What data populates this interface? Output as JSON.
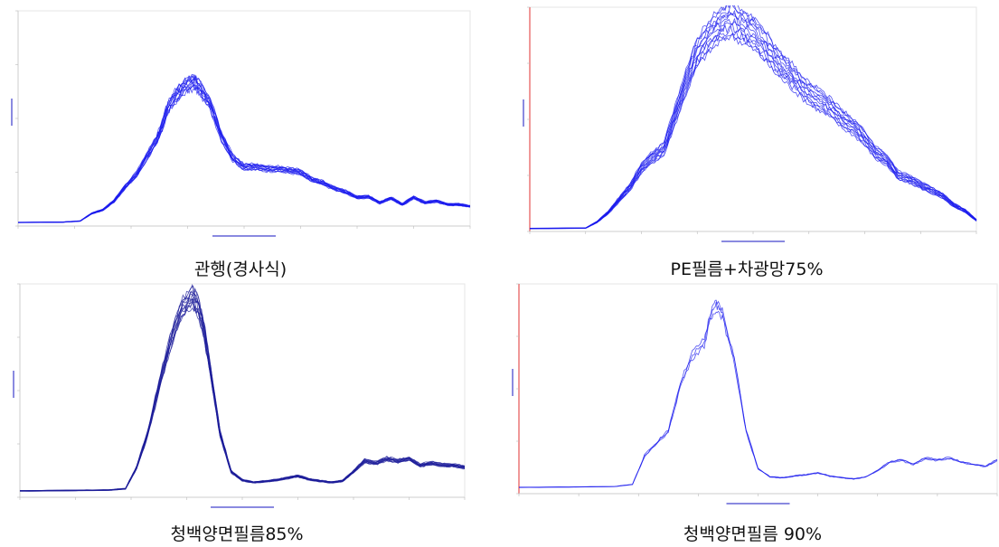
{
  "captions": [
    "관행(경사식)",
    "PE필름+차광망75%",
    "청백양면필름85%",
    "청백양면필름 90%"
  ],
  "colors": {
    "line": "#1a1aee",
    "line_dark": "#1a1a80",
    "axis_left": "#e03030",
    "grid": "#e6e6e6"
  },
  "chart_data": [
    {
      "type": "line",
      "title": "관행(경사식)",
      "xlim": [
        300,
        1100
      ],
      "ylim": [
        0,
        6000
      ],
      "series": [
        {
          "x": [
            300,
            380,
            410,
            430,
            450,
            470,
            490,
            510,
            530,
            545,
            555,
            565,
            580,
            595,
            610,
            620,
            640,
            660,
            680,
            700,
            720,
            740,
            760,
            780,
            800,
            820,
            840,
            860,
            880,
            900,
            920,
            940,
            960,
            980,
            1000,
            1020,
            1040,
            1060,
            1080,
            1100
          ],
          "values": [
            100,
            110,
            140,
            350,
            450,
            700,
            1100,
            1450,
            2000,
            2400,
            2800,
            3300,
            3650,
            3900,
            4000,
            3900,
            3400,
            2500,
            1900,
            1650,
            1650,
            1600,
            1600,
            1550,
            1500,
            1300,
            1200,
            1050,
            950,
            800,
            820,
            650,
            780,
            600,
            800,
            650,
            700,
            600,
            600,
            550
          ]
        }
      ]
    },
    {
      "type": "line",
      "title": "PE필름+차광망75%",
      "xlim": [
        300,
        1100
      ],
      "ylim": [
        0,
        6000
      ],
      "series": [
        {
          "x": [
            300,
            400,
            420,
            440,
            460,
            480,
            500,
            520,
            540,
            560,
            580,
            600,
            620,
            640,
            660,
            680,
            700,
            720,
            740,
            760,
            780,
            800,
            820,
            840,
            860,
            880,
            900,
            920,
            940,
            960,
            980,
            1000,
            1020,
            1040,
            1060,
            1080,
            1100
          ],
          "values": [
            80,
            90,
            250,
            500,
            850,
            1200,
            1700,
            2000,
            2200,
            3100,
            4000,
            4800,
            5200,
            5500,
            5700,
            5500,
            5300,
            5000,
            4600,
            4300,
            4000,
            3700,
            3500,
            3300,
            3000,
            2800,
            2500,
            2100,
            1900,
            1500,
            1400,
            1250,
            1100,
            950,
            700,
            550,
            300
          ]
        }
      ]
    },
    {
      "type": "line",
      "title": "청백양면필름85%",
      "xlim": [
        300,
        1100
      ],
      "ylim": [
        0,
        5000
      ],
      "series": [
        {
          "x": [
            300,
            400,
            460,
            490,
            510,
            530,
            550,
            570,
            590,
            610,
            620,
            630,
            640,
            660,
            680,
            700,
            720,
            740,
            760,
            780,
            800,
            820,
            840,
            860,
            880,
            900,
            920,
            940,
            960,
            980,
            1000,
            1020,
            1040,
            1060,
            1080,
            1100
          ],
          "values": [
            150,
            160,
            170,
            200,
            700,
            1500,
            2600,
            3600,
            4400,
            4700,
            4500,
            4000,
            3200,
            1500,
            600,
            400,
            350,
            370,
            400,
            450,
            500,
            420,
            380,
            350,
            380,
            600,
            850,
            800,
            900,
            850,
            900,
            750,
            800,
            750,
            750,
            700
          ]
        }
      ]
    },
    {
      "type": "line",
      "title": "청백양면필름 90%",
      "xlim": [
        300,
        1100
      ],
      "ylim": [
        0,
        5000
      ],
      "series": [
        {
          "x": [
            300,
            400,
            460,
            490,
            510,
            530,
            550,
            570,
            590,
            610,
            620,
            630,
            640,
            660,
            680,
            700,
            720,
            740,
            760,
            780,
            800,
            820,
            840,
            860,
            880,
            900,
            920,
            940,
            960,
            980,
            1000,
            1020,
            1040,
            1060,
            1080,
            1100
          ],
          "values": [
            150,
            160,
            170,
            220,
            900,
            1200,
            1500,
            2600,
            3300,
            3600,
            4200,
            4500,
            4300,
            3200,
            1500,
            600,
            400,
            380,
            420,
            450,
            500,
            420,
            380,
            350,
            400,
            550,
            750,
            800,
            700,
            850,
            800,
            850,
            750,
            700,
            650,
            800
          ]
        }
      ]
    }
  ]
}
